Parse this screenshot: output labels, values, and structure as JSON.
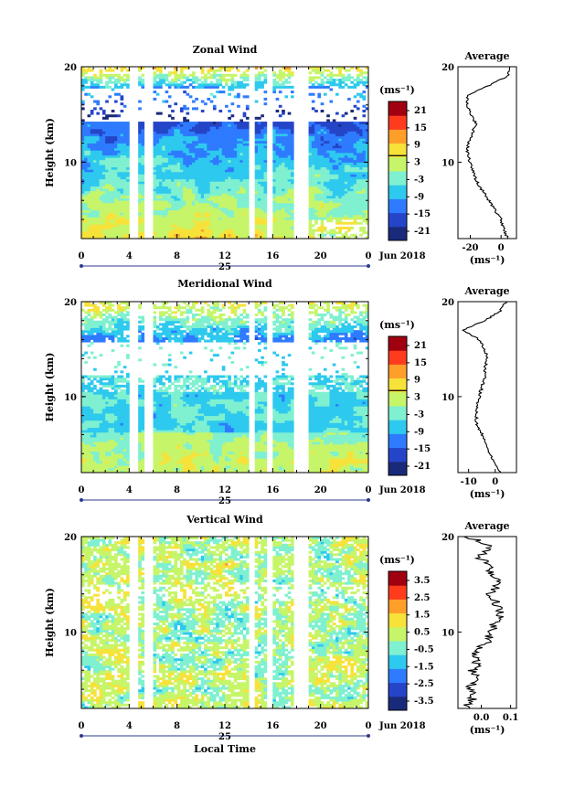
{
  "figure": {
    "x_tick_labels": [
      "0",
      "4",
      "8",
      "12",
      "16",
      "20",
      "0"
    ],
    "day_label": "25",
    "month_label": "Jun 2018",
    "x_axis_label": "Local Time",
    "y_axis_label": "Height (km)",
    "y_tick_labels": [
      "10",
      "20"
    ],
    "unit_label": "(ms⁻¹)",
    "average_title": "Average"
  },
  "panels": [
    {
      "title": "Zonal Wind",
      "colorbar_ticks": [
        "21",
        "15",
        "9",
        "3",
        "-3",
        "-9",
        "-15",
        "-21"
      ],
      "avg_x_ticks": [
        "-20",
        "0"
      ]
    },
    {
      "title": "Meridional Wind",
      "colorbar_ticks": [
        "21",
        "15",
        "9",
        "3",
        "-3",
        "-9",
        "-15",
        "-21"
      ],
      "avg_x_ticks": [
        "-10",
        "0"
      ]
    },
    {
      "title": "Vertical Wind",
      "colorbar_ticks": [
        "3.5",
        "2.5",
        "1.5",
        "0.5",
        "-0.5",
        "-1.5",
        "-2.5",
        "-3.5"
      ],
      "avg_x_ticks": [
        "0.0",
        "0.1"
      ]
    }
  ],
  "chart_data": [
    {
      "type": "heatmap",
      "title": "Zonal Wind",
      "xlabel": "Local Time",
      "ylabel": "Height (km)",
      "xlim": [
        0,
        24
      ],
      "ylim": [
        2,
        20
      ],
      "clim": [
        -24,
        24
      ],
      "colormap": [
        "#1a2a7a",
        "#2545c8",
        "#2e7bff",
        "#2ec9ee",
        "#7ff0d0",
        "#c6f56a",
        "#f7e23a",
        "#ff9f2a",
        "#ff3b1e",
        "#a00010"
      ],
      "data_gaps_hours": [
        [
          4.0,
          4.6
        ],
        [
          5.2,
          5.8
        ],
        [
          13.8,
          14.4
        ],
        [
          15.4,
          16.0
        ],
        [
          17.6,
          19.0
        ]
      ],
      "average_profile": {
        "xlim": [
          -28,
          10
        ],
        "height": [
          2,
          3,
          4,
          5,
          6,
          7,
          8,
          9,
          10,
          11,
          12,
          13,
          14,
          15,
          16,
          17,
          18,
          19,
          20
        ],
        "value": [
          4,
          2,
          0,
          -4,
          -8,
          -12,
          -16,
          -18,
          -20,
          -22,
          -21,
          -19,
          -16,
          -20,
          -22,
          -22,
          -8,
          4,
          6
        ]
      }
    },
    {
      "type": "heatmap",
      "title": "Meridional Wind",
      "xlabel": "Local Time",
      "ylabel": "Height (km)",
      "xlim": [
        0,
        24
      ],
      "ylim": [
        2,
        20
      ],
      "clim": [
        -24,
        24
      ],
      "colormap": [
        "#1a2a7a",
        "#2545c8",
        "#2e7bff",
        "#2ec9ee",
        "#7ff0d0",
        "#c6f56a",
        "#f7e23a",
        "#ff9f2a",
        "#ff3b1e",
        "#a00010"
      ],
      "data_gaps_hours": [
        [
          4.0,
          4.6
        ],
        [
          5.2,
          5.8
        ],
        [
          13.8,
          14.4
        ],
        [
          15.4,
          16.0
        ],
        [
          17.6,
          19.0
        ]
      ],
      "average_profile": {
        "xlim": [
          -14,
          8
        ],
        "height": [
          2,
          3,
          4,
          5,
          6,
          7,
          8,
          9,
          10,
          11,
          12,
          13,
          14,
          15,
          16,
          17,
          18,
          19,
          20
        ],
        "value": [
          2,
          0,
          -2,
          -3,
          -5,
          -7,
          -7,
          -7,
          -6,
          -5,
          -4,
          -4,
          -3,
          -4,
          -6,
          -12,
          -4,
          2,
          4
        ]
      }
    },
    {
      "type": "heatmap",
      "title": "Vertical Wind",
      "xlabel": "Local Time",
      "ylabel": "Height (km)",
      "xlim": [
        0,
        24
      ],
      "ylim": [
        2,
        20
      ],
      "clim": [
        -4,
        4
      ],
      "colormap": [
        "#1a2a7a",
        "#2545c8",
        "#2e7bff",
        "#2ec9ee",
        "#7ff0d0",
        "#c6f56a",
        "#f7e23a",
        "#ff9f2a",
        "#ff3b1e",
        "#a00010"
      ],
      "data_gaps_hours": [
        [
          4.0,
          4.6
        ],
        [
          5.2,
          5.8
        ],
        [
          13.8,
          14.4
        ],
        [
          15.4,
          16.0
        ],
        [
          17.6,
          19.0
        ]
      ],
      "average_profile": {
        "xlim": [
          -0.08,
          0.12
        ],
        "height": [
          2,
          3,
          4,
          5,
          6,
          7,
          8,
          9,
          10,
          11,
          12,
          13,
          14,
          15,
          16,
          17,
          18,
          19,
          20
        ],
        "value": [
          -0.05,
          -0.03,
          -0.04,
          -0.02,
          -0.03,
          -0.01,
          -0.02,
          0.02,
          0.03,
          0.05,
          0.07,
          0.05,
          0.03,
          0.06,
          0.04,
          0.02,
          -0.01,
          0.04,
          -0.05
        ]
      }
    }
  ]
}
